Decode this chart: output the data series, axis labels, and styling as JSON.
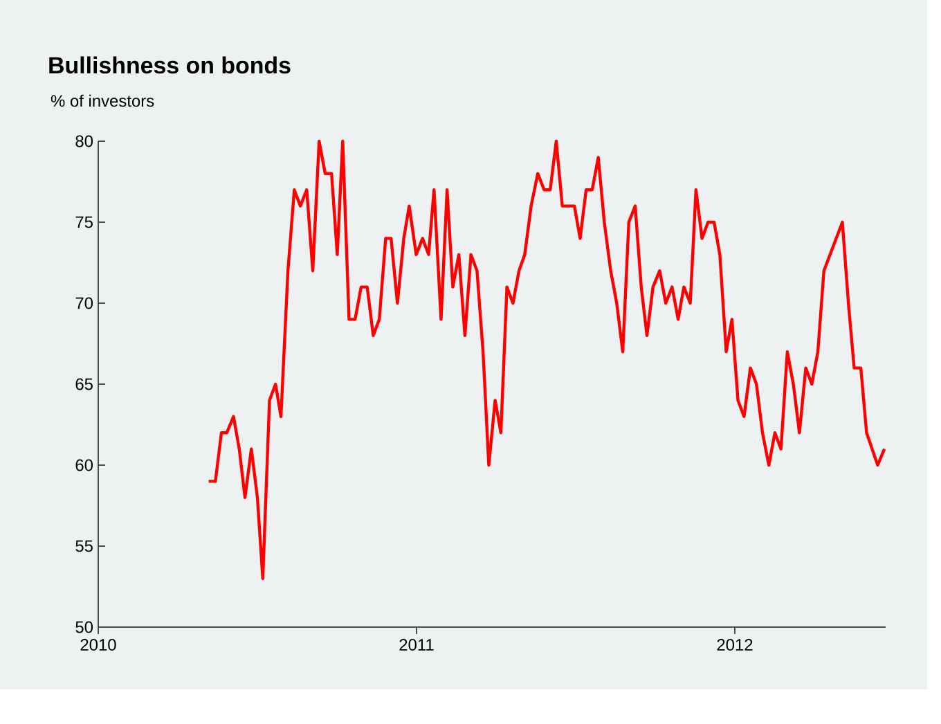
{
  "chart_data": {
    "type": "line",
    "title": "Bullishness on bonds",
    "subtitle": "% of investors",
    "x": [
      2010.347,
      2010.368,
      2010.387,
      2010.404,
      2010.425,
      2010.443,
      2010.461,
      2010.481,
      2010.5,
      2010.517,
      2010.538,
      2010.557,
      2010.574,
      2010.596,
      2010.616,
      2010.635,
      2010.655,
      2010.674,
      2010.694,
      2010.713,
      2010.733,
      2010.751,
      2010.768,
      2010.788,
      2010.807,
      2010.826,
      2010.845,
      2010.864,
      2010.883,
      2010.903,
      2010.92,
      2010.94,
      2010.96,
      2010.977,
      2010.999,
      2011.019,
      2011.038,
      2011.055,
      2011.077,
      2011.096,
      2011.114,
      2011.133,
      2011.152,
      2011.171,
      2011.19,
      2011.209,
      2011.227,
      2011.247,
      2011.265,
      2011.284,
      2011.303,
      2011.322,
      2011.34,
      2011.36,
      2011.381,
      2011.401,
      2011.42,
      2011.439,
      2011.458,
      2011.477,
      2011.496,
      2011.514,
      2011.533,
      2011.552,
      2011.571,
      2011.59,
      2011.61,
      2011.629,
      2011.648,
      2011.667,
      2011.687,
      2011.706,
      2011.724,
      2011.743,
      2011.764,
      2011.783,
      2011.803,
      2011.822,
      2011.84,
      2011.86,
      2011.878,
      2011.897,
      2011.916,
      2011.935,
      2011.953,
      2011.973,
      2011.991,
      2012.01,
      2012.029,
      2012.049,
      2012.068,
      2012.087,
      2012.107,
      2012.126,
      2012.145,
      2012.165,
      2012.184,
      2012.203,
      2012.223,
      2012.242,
      2012.261,
      2012.28,
      2012.338,
      2012.357,
      2012.375,
      2012.396,
      2012.414,
      2012.449,
      2012.47
    ],
    "series": [
      {
        "color": "#ff0000",
        "values": [
          59,
          59,
          62,
          62,
          63,
          61,
          58,
          61,
          58,
          53,
          64,
          65,
          63,
          72,
          77,
          76,
          77,
          72,
          80,
          78,
          78,
          73,
          80,
          69,
          69,
          71,
          71,
          68,
          69,
          74,
          74,
          70,
          74,
          76,
          73,
          74,
          73,
          77,
          69,
          77,
          71,
          73,
          68,
          73,
          72,
          67,
          60,
          64,
          62,
          71,
          70,
          72,
          73,
          76,
          78,
          77,
          77,
          80,
          76,
          76,
          76,
          74,
          77,
          77,
          79,
          75,
          72,
          70,
          67,
          75,
          76,
          71,
          68,
          71,
          72,
          70,
          71,
          69,
          71,
          70,
          77,
          74,
          75,
          75,
          73,
          67,
          69,
          64,
          63,
          66,
          65,
          62,
          60,
          62,
          61,
          67,
          65,
          62,
          66,
          65,
          67,
          72,
          75,
          70,
          66,
          66,
          62,
          60,
          61
        ]
      }
    ],
    "xlim": [
      2010,
      2012.474
    ],
    "xticks": [
      2010,
      2011,
      2012
    ],
    "ylim": [
      50,
      80
    ],
    "yticks": [
      50,
      55,
      60,
      65,
      70,
      75,
      80
    ],
    "grid": false,
    "marker": "none",
    "line_style": "solid"
  }
}
